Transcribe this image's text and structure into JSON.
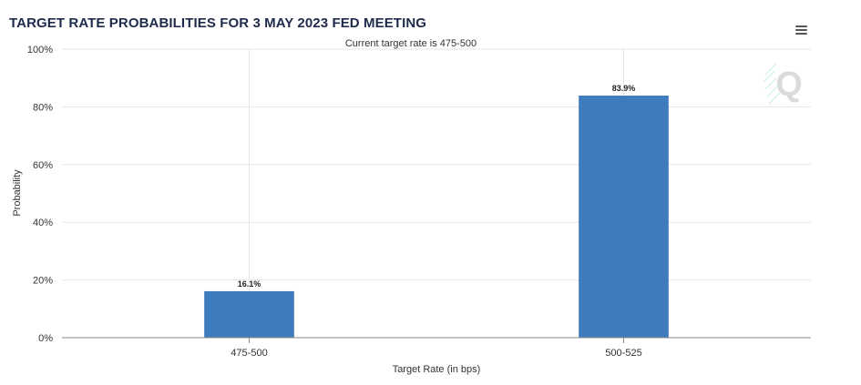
{
  "header": {
    "title": "TARGET RATE PROBABILITIES FOR 3 MAY 2023 FED MEETING",
    "subtitle": "Current target rate is 475-500",
    "menu_icon": "hamburger-menu-icon",
    "watermark_icon": "q-logo-watermark-icon"
  },
  "chart_data": {
    "type": "bar",
    "title": "TARGET RATE PROBABILITIES FOR 3 MAY 2023 FED MEETING",
    "subtitle": "Current target rate is 475-500",
    "categories": [
      "475-500",
      "500-525"
    ],
    "values": [
      16.1,
      83.9
    ],
    "data_labels": [
      "16.1%",
      "83.9%"
    ],
    "xlabel": "Target Rate (in bps)",
    "ylabel": "Probability",
    "ylim": [
      0,
      100
    ],
    "yticks": [
      0,
      20,
      40,
      60,
      80,
      100
    ],
    "ytick_labels": [
      "0%",
      "20%",
      "40%",
      "60%",
      "80%",
      "100%"
    ],
    "grid": true,
    "bar_color": "#3f7cbd",
    "grid_color": "#e6e6e6",
    "axis_color": "#8a8a8a",
    "legend": "none"
  }
}
